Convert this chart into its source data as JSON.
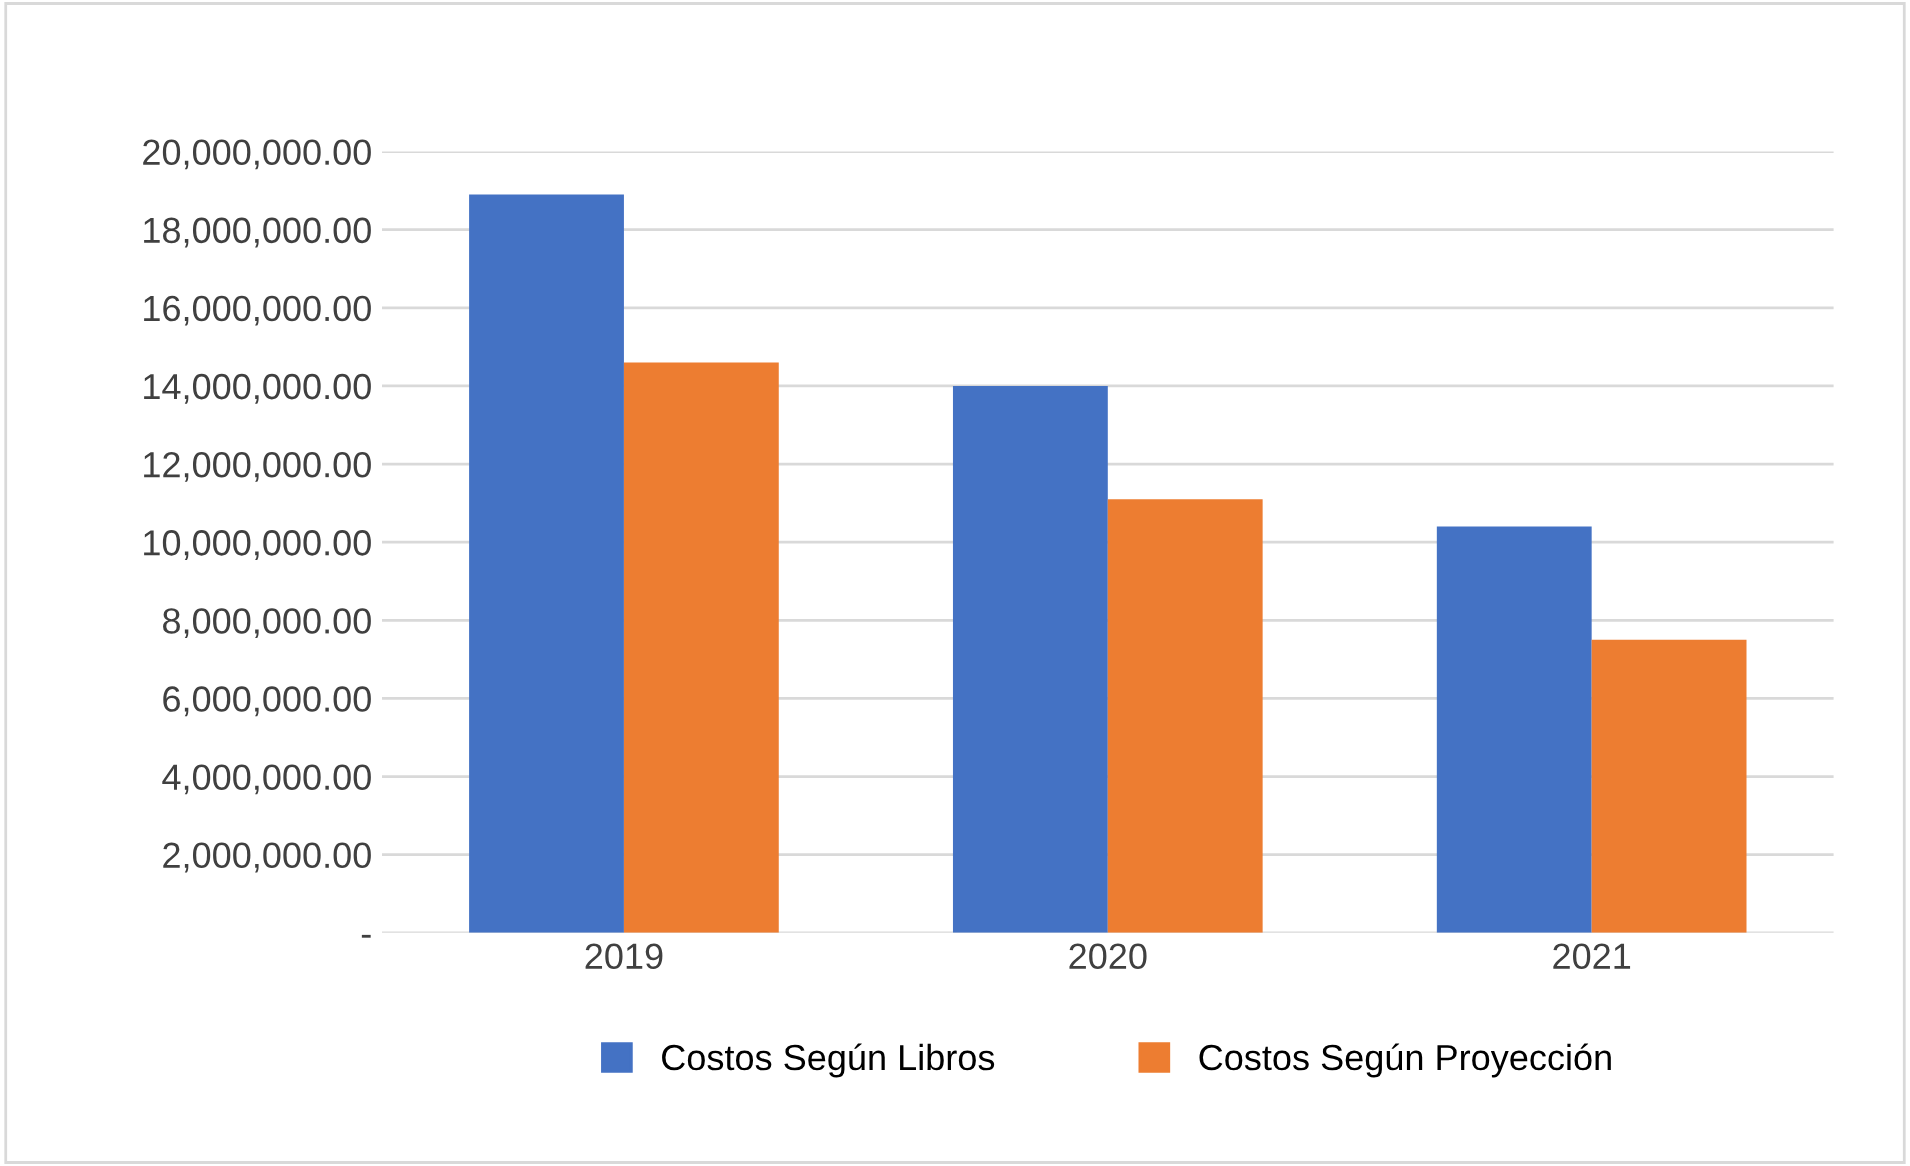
{
  "chart_data": {
    "type": "bar",
    "categories": [
      "2019",
      "2020",
      "2021"
    ],
    "series": [
      {
        "name": "Costos Según Libros",
        "color": "#4472c4",
        "values": [
          18900000,
          14000000,
          10400000
        ]
      },
      {
        "name": "Costos Según Proyección",
        "color": "#ed7d31",
        "values": [
          14600000,
          11100000,
          7500000
        ]
      }
    ],
    "ylim": [
      0,
      20000000
    ],
    "yticks": [
      {
        "value": 0,
        "label": "-"
      },
      {
        "value": 2000000,
        "label": "2,000,000.00"
      },
      {
        "value": 4000000,
        "label": "4,000,000.00"
      },
      {
        "value": 6000000,
        "label": "6,000,000.00"
      },
      {
        "value": 8000000,
        "label": "8,000,000.00"
      },
      {
        "value": 10000000,
        "label": "10,000,000.00"
      },
      {
        "value": 12000000,
        "label": "12,000,000.00"
      },
      {
        "value": 14000000,
        "label": "14,000,000.00"
      },
      {
        "value": 16000000,
        "label": "16,000,000.00"
      },
      {
        "value": 18000000,
        "label": "18,000,000.00"
      },
      {
        "value": 20000000,
        "label": "20,000,000.00"
      }
    ],
    "grid": "y",
    "legend": "bottom"
  }
}
